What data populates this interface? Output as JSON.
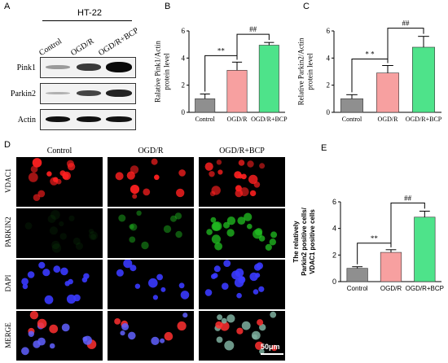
{
  "panel_labels": {
    "a": "A",
    "b": "B",
    "c": "C",
    "d": "D",
    "e": "E"
  },
  "blot": {
    "cell_line": "HT-22",
    "lanes": [
      "Control",
      "OGD/R",
      "OGD/R+BCP"
    ],
    "rows": [
      {
        "name": "Pink1",
        "intensity": [
          0.25,
          0.7,
          1.0
        ]
      },
      {
        "name": "Parkin2",
        "intensity": [
          0.15,
          0.55,
          0.75
        ]
      },
      {
        "name": "Actin",
        "intensity": [
          0.85,
          0.85,
          0.85
        ]
      }
    ]
  },
  "micro": {
    "columns": [
      "Control",
      "OGD/R",
      "OGD/R+BCP"
    ],
    "rows": [
      "VDAC1",
      "PARKIN2",
      "DAPI",
      "MERGE"
    ],
    "scale_bar": "50μm"
  },
  "chart_data": [
    {
      "type": "bar",
      "categories": [
        "Control",
        "OGD/R",
        "OGD/R+BCP"
      ],
      "values": [
        1.0,
        3.1,
        4.95
      ],
      "errors": [
        0.35,
        0.6,
        0.2
      ],
      "colors": [
        "#8f8f8f",
        "#f7a0a0",
        "#4ee38a"
      ],
      "ylabel": "Ralative Pink1/Actin protein level",
      "ylim": [
        0,
        6
      ],
      "yticks": [
        "0",
        "2",
        "4",
        "6"
      ],
      "sig": [
        {
          "from": 0,
          "to": 1,
          "label": "**"
        },
        {
          "from": 1,
          "to": 2,
          "label": "##"
        }
      ]
    },
    {
      "type": "bar",
      "categories": [
        "Control",
        "OGD/R",
        "OGD/R+BCP"
      ],
      "values": [
        1.0,
        2.9,
        4.8
      ],
      "errors": [
        0.3,
        0.55,
        0.8
      ],
      "colors": [
        "#8f8f8f",
        "#f7a0a0",
        "#4ee38a"
      ],
      "ylabel": "Relative Parkin2/Actin protein level",
      "ylim": [
        0,
        6
      ],
      "yticks": [
        "0",
        "2",
        "4",
        "6"
      ],
      "sig": [
        {
          "from": 0,
          "to": 1,
          "label": "* *"
        },
        {
          "from": 1,
          "to": 2,
          "label": "##"
        }
      ]
    },
    {
      "type": "bar",
      "categories": [
        "Control",
        "OGD/R",
        "OGD/R+BCP"
      ],
      "values": [
        1.0,
        2.2,
        4.85
      ],
      "errors": [
        0.12,
        0.2,
        0.45
      ],
      "colors": [
        "#8f8f8f",
        "#f7a0a0",
        "#4ee38a"
      ],
      "ylabel": "The relatively Parkin2 positive cells/ VDAC1 positive cells",
      "ylim": [
        0,
        6
      ],
      "yticks": [
        "0",
        "2",
        "4",
        "6"
      ],
      "sig": [
        {
          "from": 0,
          "to": 1,
          "label": "**"
        },
        {
          "from": 1,
          "to": 2,
          "label": "##"
        }
      ]
    }
  ]
}
